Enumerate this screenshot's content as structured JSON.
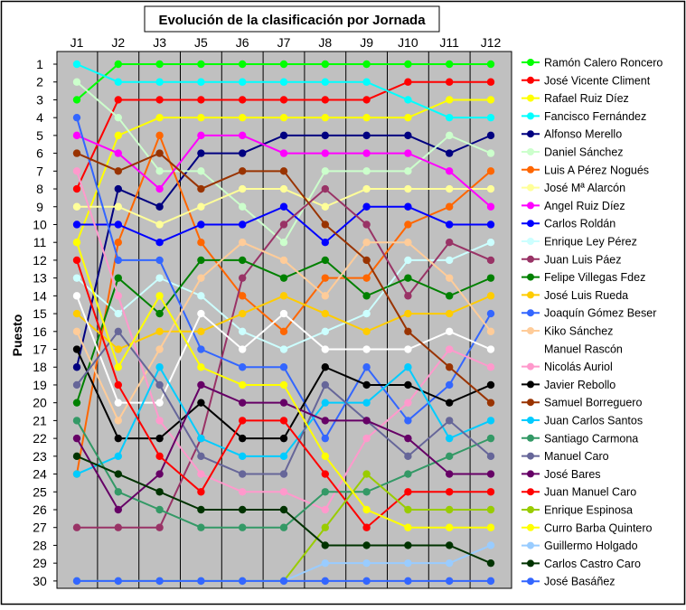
{
  "chart_data": {
    "type": "line",
    "title": "Evolución de la clasificación por Jornada",
    "xlabel": "",
    "ylabel": "Puesto",
    "categories": [
      "J1",
      "J2",
      "J3",
      "J5",
      "J6",
      "J7",
      "J8",
      "J9",
      "J10",
      "J11",
      "J12"
    ],
    "y_ticks": [
      "1",
      "2",
      "3",
      "4",
      "5",
      "6",
      "7",
      "8",
      "9",
      "10",
      "11",
      "12",
      "13",
      "14",
      "15",
      "16",
      "17",
      "18",
      "19",
      "20",
      "21",
      "22",
      "23",
      "24",
      "25",
      "26",
      "27",
      "28",
      "29",
      "30"
    ],
    "ylim": [
      1,
      30
    ],
    "y_inverted": true,
    "grid": "vertical",
    "legend": "right",
    "plot_background": "#c0c0c0",
    "series": [
      {
        "name": "Ramón Calero Roncero",
        "color": "#00ff00",
        "values": [
          3,
          1,
          1,
          1,
          1,
          1,
          1,
          1,
          1,
          1,
          1
        ]
      },
      {
        "name": "José Vicente Climent",
        "color": "#ff0000",
        "values": [
          8,
          3,
          3,
          3,
          3,
          3,
          3,
          3,
          2,
          2,
          2
        ]
      },
      {
        "name": "Rafael Ruiz Díez",
        "color": "#ffff00",
        "values": [
          11,
          5,
          4,
          4,
          4,
          4,
          4,
          4,
          4,
          3,
          3
        ]
      },
      {
        "name": "Fancisco Fernández",
        "color": "#00ffff",
        "values": [
          1,
          2,
          2,
          2,
          2,
          2,
          2,
          2,
          3,
          4,
          4
        ]
      },
      {
        "name": "Alfonso Merello",
        "color": "#000080",
        "values": [
          18,
          8,
          9,
          6,
          6,
          5,
          5,
          5,
          5,
          6,
          5
        ]
      },
      {
        "name": "Daniel Sánchez",
        "color": "#ccffcc",
        "values": [
          2,
          4,
          7,
          7,
          9,
          11,
          7,
          7,
          7,
          5,
          6
        ]
      },
      {
        "name": "Luis A Pérez Nogués",
        "color": "#ff6600",
        "values": [
          24,
          11,
          5,
          11,
          14,
          16,
          13,
          13,
          10,
          9,
          7
        ]
      },
      {
        "name": "José Mª Alarcón",
        "color": "#ffff99",
        "values": [
          9,
          9,
          10,
          9,
          8,
          8,
          9,
          8,
          8,
          8,
          8
        ]
      },
      {
        "name": "Angel Ruiz Díez",
        "color": "#ff00ff",
        "values": [
          5,
          6,
          8,
          5,
          5,
          6,
          6,
          6,
          6,
          7,
          9
        ]
      },
      {
        "name": "Carlos Roldán",
        "color": "#0000ff",
        "values": [
          10,
          10,
          11,
          10,
          10,
          9,
          11,
          9,
          9,
          10,
          10
        ]
      },
      {
        "name": "Enrique Ley Pérez",
        "color": "#ccffff",
        "values": [
          13,
          15,
          13,
          14,
          16,
          17,
          16,
          15,
          12,
          12,
          11
        ]
      },
      {
        "name": "Juan Luis Páez",
        "color": "#993366",
        "values": [
          27,
          27,
          27,
          22,
          13,
          10,
          8,
          10,
          14,
          11,
          12
        ]
      },
      {
        "name": "Felipe Villegas Fdez",
        "color": "#008000",
        "values": [
          20,
          13,
          15,
          12,
          12,
          13,
          12,
          14,
          13,
          14,
          13
        ]
      },
      {
        "name": "José Luis Rueda",
        "color": "#ffcc00",
        "values": [
          15,
          17,
          16,
          16,
          15,
          14,
          15,
          16,
          15,
          15,
          14
        ]
      },
      {
        "name": "Joaquín Gómez Beser",
        "color": "#3366ff",
        "values": [
          4,
          12,
          12,
          17,
          18,
          18,
          22,
          18,
          21,
          19,
          15
        ]
      },
      {
        "name": "Kiko Sánchez",
        "color": "#ffcc99",
        "values": [
          16,
          21,
          17,
          13,
          11,
          12,
          14,
          11,
          11,
          13,
          16
        ]
      },
      {
        "name": "Manuel Rascón",
        "color": "#ffffff",
        "values": [
          14,
          20,
          20,
          15,
          17,
          15,
          17,
          17,
          17,
          16,
          17
        ]
      },
      {
        "name": "Nicolás Auriol",
        "color": "#ff99cc",
        "values": [
          7,
          14,
          21,
          24,
          25,
          25,
          26,
          22,
          20,
          17,
          18
        ]
      },
      {
        "name": "Javier Rebollo",
        "color": "#000000",
        "values": [
          17,
          22,
          22,
          20,
          22,
          22,
          18,
          19,
          19,
          20,
          19
        ]
      },
      {
        "name": "Samuel Borreguero",
        "color": "#993300",
        "values": [
          6,
          7,
          6,
          8,
          7,
          7,
          10,
          12,
          16,
          18,
          20
        ]
      },
      {
        "name": "Juan Carlos Santos",
        "color": "#00ccff",
        "values": [
          24,
          23,
          18,
          22,
          23,
          23,
          20,
          20,
          18,
          22,
          21
        ]
      },
      {
        "name": "Santiago Carmona",
        "color": "#339966",
        "values": [
          21,
          25,
          26,
          27,
          27,
          27,
          25,
          25,
          24,
          23,
          22
        ]
      },
      {
        "name": "Manuel Caro",
        "color": "#666699",
        "values": [
          19,
          16,
          19,
          23,
          24,
          24,
          19,
          21,
          23,
          21,
          23
        ]
      },
      {
        "name": "José Bares",
        "color": "#660066",
        "values": [
          22,
          26,
          24,
          19,
          20,
          20,
          21,
          21,
          22,
          24,
          24
        ]
      },
      {
        "name": "Juan Manuel Caro",
        "color": "#ff0000",
        "values": [
          12,
          19,
          23,
          25,
          21,
          21,
          24,
          27,
          25,
          25,
          25
        ]
      },
      {
        "name": "Enrique Espinosa",
        "color": "#99cc00",
        "values": [
          30,
          30,
          30,
          30,
          30,
          30,
          27,
          24,
          26,
          26,
          26
        ]
      },
      {
        "name": "Curro Barba Quintero",
        "color": "#ffff00",
        "values": [
          11,
          18,
          14,
          18,
          19,
          19,
          23,
          26,
          27,
          27,
          27
        ]
      },
      {
        "name": "Guillermo Holgado",
        "color": "#99ccff",
        "values": [
          30,
          30,
          30,
          30,
          30,
          30,
          29,
          29,
          29,
          29,
          28
        ]
      },
      {
        "name": "Carlos Castro Caro",
        "color": "#003300",
        "values": [
          23,
          24,
          25,
          26,
          26,
          26,
          28,
          28,
          28,
          28,
          29
        ]
      },
      {
        "name": "José Basáñez",
        "color": "#3366ff",
        "values": [
          30,
          30,
          30,
          30,
          30,
          30,
          30,
          30,
          30,
          30,
          30
        ]
      }
    ]
  }
}
